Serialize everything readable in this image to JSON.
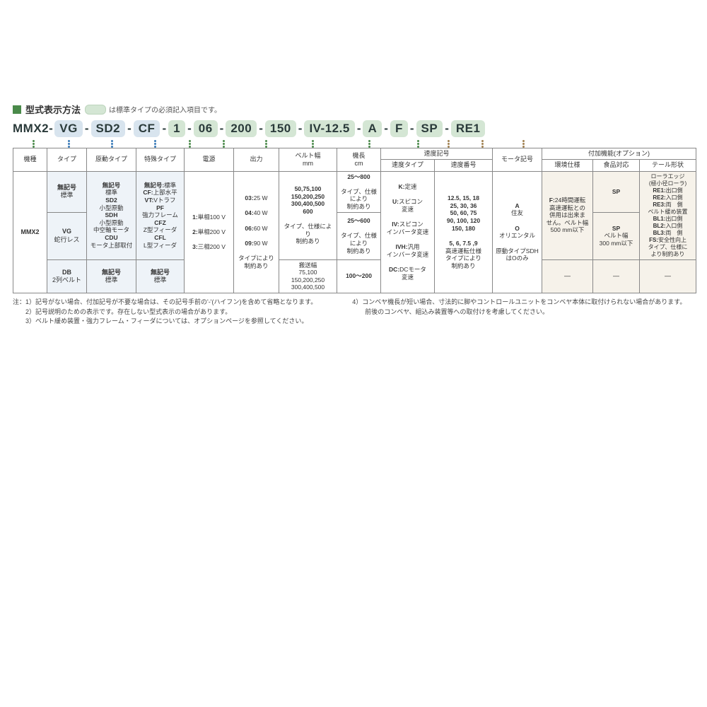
{
  "title": "型式表示方法",
  "pill_note": "は標準タイプの必須記入項目です。",
  "colors": {
    "green_pill": "#d4e6d4",
    "blue_pill": "#d8e4ee",
    "square": "#4a8a4a",
    "dot_green": "#4a8a4a",
    "dot_blue": "#3a7ab8",
    "dot_brown": "#a08050",
    "fill_blue": "#eef3f8",
    "fill_beige": "#f6f2ea"
  },
  "model_segments": [
    {
      "text": "MMX2-",
      "pill": false
    },
    {
      "text": "VG",
      "pill": true,
      "cls": "blueish"
    },
    {
      "text": "-",
      "pill": false
    },
    {
      "text": "SD2",
      "pill": true,
      "cls": "blueish"
    },
    {
      "text": "-",
      "pill": false
    },
    {
      "text": "CF",
      "pill": true,
      "cls": "blueish"
    },
    {
      "text": "-",
      "pill": false
    },
    {
      "text": "1",
      "pill": true
    },
    {
      "text": "-",
      "pill": false
    },
    {
      "text": "06",
      "pill": true
    },
    {
      "text": "-",
      "pill": false
    },
    {
      "text": "200",
      "pill": true
    },
    {
      "text": "-",
      "pill": false
    },
    {
      "text": "150",
      "pill": true
    },
    {
      "text": "-",
      "pill": false
    },
    {
      "text": "IV-12.5",
      "pill": true
    },
    {
      "text": "-",
      "pill": false
    },
    {
      "text": "A",
      "pill": true
    },
    {
      "text": "-",
      "pill": false
    },
    {
      "text": "F",
      "pill": true
    },
    {
      "text": "-",
      "pill": false
    },
    {
      "text": "SP",
      "pill": true
    },
    {
      "text": "-",
      "pill": false
    },
    {
      "text": "RE1",
      "pill": true
    }
  ],
  "headers": {
    "col1": "機種",
    "col2": "タイプ",
    "col3": "原動タイプ",
    "col4": "特殊タイプ",
    "col5": "電源",
    "col6": "出力",
    "col7": "ベルト幅\nmm",
    "col8": "機長\ncm",
    "col9": "速度記号",
    "col9a": "速度タイプ",
    "col9b": "速度番号",
    "col10": "モータ記号",
    "col11": "付加機能(オプション)",
    "col11a": "環境仕様",
    "col11b": "食品対応",
    "col11c": "テール形状"
  },
  "body": {
    "kishu": "MMX2",
    "type_r1_a": "無記号",
    "type_r1_b": "標準",
    "type_r2_a": "VG",
    "type_r2_b": "蛇行レス",
    "type_r3_a": "DB",
    "type_r3_b": "2列ベルト",
    "gendo_r1": "無記号\n標準\nSD2\n小型原動\nSDH\n小型原動\n中空軸モータ\nCDU\nモータ上部取付",
    "gendo_muki": "無記号",
    "gendo_std": "標準",
    "gendo_sd2": "SD2",
    "gendo_sd2d": "小型原動",
    "gendo_sdh": "SDH",
    "gendo_sdhd": "小型原動\n中空軸モータ",
    "gendo_cdu": "CDU",
    "gendo_cdud": "モータ上部取付",
    "gendo_r3_a": "無記号",
    "gendo_r3_b": "標準",
    "toku_muki": "無記号:",
    "toku_std": "標準",
    "toku_cf": "CF:",
    "toku_cfd": "上部水平",
    "toku_vt": "VT:",
    "toku_vtd": "Vトラフ",
    "toku_pf": "PF",
    "toku_pfd": "強力フレーム",
    "toku_cfz": "CFZ",
    "toku_cfzd": "Z型フィーダ",
    "toku_cfl": "CFL",
    "toku_cfld": "L型フィーダ",
    "toku_r3_a": "無記号",
    "toku_r3_b": "標準",
    "dengen_1": "1:",
    "dengen_1d": "単相100 V",
    "dengen_2": "2:",
    "dengen_2d": "単相200 V",
    "dengen_3": "3:",
    "dengen_3d": "三相200 V",
    "out_03": "03:",
    "out_03d": "25 W",
    "out_04": "04:",
    "out_04d": "40 W",
    "out_06": "06:",
    "out_06d": "60 W",
    "out_09": "09:",
    "out_09d": "90 W",
    "out_note": "タイプにより\n制約あり",
    "belt_r1a": "50,75,100\n150,200,250\n300,400,500\n600",
    "belt_r1b": "タイプ、仕様により\n制約あり",
    "belt_r3a": "搬送幅\n75,100\n150,200,250\n300,400,500",
    "len_r1a": "25～800",
    "len_r1b": "タイプ、仕様\nにより\n制約あり",
    "len_r2a": "25～600",
    "len_r2b": "タイプ、仕様\nにより\n制約あり",
    "len_r3": "100～200",
    "spd_k": "K:",
    "spd_kd": "定速",
    "spd_u": "U:",
    "spd_ud": "スピコン\n変速",
    "spd_iv": "IV:",
    "spd_ivd": "スピコン\nインバータ変速",
    "spd_ivh": "IVH:",
    "spd_ivhd": "汎用\nインバータ変速",
    "spd_dc": "DC:",
    "spd_dcd": "DCモータ\n変速",
    "spd_nums": "12.5, 15, 18\n25, 30, 36\n50, 60, 75\n90, 100, 120\n150, 180",
    "spd_nums2": "5, 6, 7.5 ,9",
    "spd_nums2d": "高速運転仕様\nタイプにより\n制約あり",
    "motor_a": "A",
    "motor_ad": "住友",
    "motor_o": "O",
    "motor_od": "オリエンタル",
    "motor_note": "原動タイプSDH\nはOのみ",
    "env_f": "F:",
    "env_fd": "24時間運転\n高速運転との\n併用は出来ま\nせん。ベルト幅\n500 mm以下",
    "food_sp": "SP",
    "food_sp2": "SP",
    "food_sp2d": "ベルト幅\n300 mm以下",
    "tail_head": "ローラエッジ\n(極小径ローラ)",
    "tail_re1": "RE1:",
    "tail_re1d": "出口側",
    "tail_re2": "RE2:",
    "tail_re2d": "入口側",
    "tail_re3": "RE3:",
    "tail_re3d": "両　側",
    "tail_belt": "ベルト緩め装置",
    "tail_bl1": "BL1:",
    "tail_bl1d": "出口側",
    "tail_bl2": "BL2:",
    "tail_bl2d": "入口側",
    "tail_bl3": "BL3:",
    "tail_bl3d": "両　側",
    "tail_fs": "FS:",
    "tail_fsd": "安全性向上",
    "tail_note": "タイプ、仕様に\nより制約あり",
    "dash": "—"
  },
  "notes_left": [
    "注：1）記号がない場合、付加記号が不要な場合は、その記号手前の'-'(ハイフン)を含めて省略となります。",
    "　　2）記号説明のための表示です。存在しない型式表示の場合があります。",
    "　　3）ベルト緩め装置・強力フレーム・フィーダについては、オプションページを参照してください。"
  ],
  "notes_right": [
    "4）コンベヤ機長が短い場合、寸法的に脚やコントロールユニットをコンベヤ本体に取付けられない場合があります。",
    "　　前後のコンベヤ、組込み装置等への取付けを考慮してください。"
  ]
}
